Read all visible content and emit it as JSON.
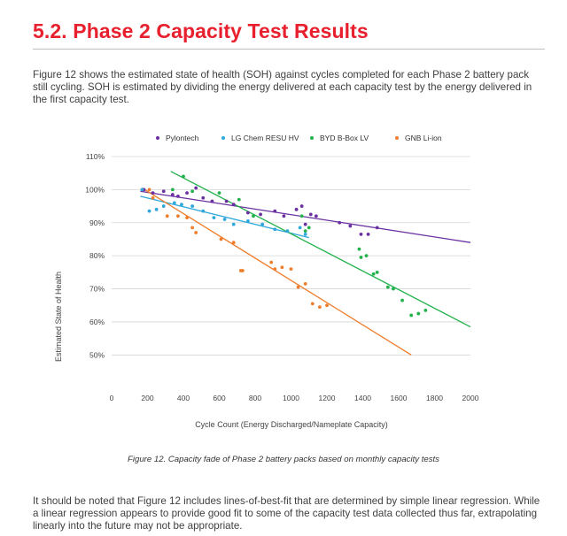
{
  "heading": "5.2. Phase 2 Capacity Test Results",
  "intro": "Figure 12 shows the estimated state of health (SOH) against cycles completed for each Phase 2 battery pack still cycling. SOH is estimated by dividing the energy delivered at each capacity test by the energy delivered in the first capacity test.",
  "caption": "Figure 12. Capacity fade of Phase 2 battery packs based on monthly capacity tests",
  "note": "It should be noted that Figure 12 includes lines-of-best-fit that are determined by simple linear regression. While a linear regression appears to provide good fit to some of the capacity test data collected thus far, extrapolating linearly into the future may not be appropriate.",
  "chart_data": {
    "type": "scatter",
    "xlabel": "Cycle Count (Energy Discharged/Nameplate Capacity)",
    "ylabel": "Estimated State of Health",
    "xlim": [
      0,
      2000
    ],
    "ylim": [
      45,
      110
    ],
    "xticks": [
      0,
      200,
      400,
      600,
      800,
      1000,
      1200,
      1400,
      1600,
      1800,
      2000
    ],
    "yticks": [
      50,
      60,
      70,
      80,
      90,
      100,
      110
    ],
    "ytick_labels": [
      "50%",
      "60%",
      "70%",
      "80%",
      "90%",
      "100%",
      "110%"
    ],
    "grid": "horizontal",
    "legend_position": "top",
    "series": [
      {
        "name": "Pylontech",
        "color": "#6a2fa0",
        "points": [
          [
            180,
            100
          ],
          [
            230,
            99
          ],
          [
            290,
            99.5
          ],
          [
            340,
            98.5
          ],
          [
            370,
            98
          ],
          [
            420,
            99
          ],
          [
            470,
            100.5
          ],
          [
            510,
            97.5
          ],
          [
            560,
            96.5
          ],
          [
            640,
            96.5
          ],
          [
            680,
            95.5
          ],
          [
            760,
            93
          ],
          [
            830,
            92.5
          ],
          [
            910,
            93.5
          ],
          [
            960,
            92
          ],
          [
            1030,
            94
          ],
          [
            1060,
            95
          ],
          [
            1080,
            89.5
          ],
          [
            1110,
            92.5
          ],
          [
            1140,
            92
          ],
          [
            1270,
            90
          ],
          [
            1330,
            89
          ],
          [
            1390,
            86.5
          ],
          [
            1430,
            86.5
          ],
          [
            1480,
            88.5
          ]
        ],
        "fit": [
          [
            160,
            99.5
          ],
          [
            2000,
            84
          ]
        ]
      },
      {
        "name": "LG Chem RESU HV",
        "color": "#2ea7dc",
        "points": [
          [
            170,
            100
          ],
          [
            210,
            93.5
          ],
          [
            250,
            94
          ],
          [
            290,
            95
          ],
          [
            350,
            96
          ],
          [
            390,
            95.5
          ],
          [
            450,
            95
          ],
          [
            510,
            93.5
          ],
          [
            570,
            91.5
          ],
          [
            630,
            91
          ],
          [
            680,
            89.5
          ],
          [
            760,
            90.5
          ],
          [
            840,
            89.5
          ],
          [
            910,
            88
          ],
          [
            980,
            87.5
          ],
          [
            1050,
            88.5
          ],
          [
            1080,
            86.5
          ]
        ],
        "fit": [
          [
            160,
            98
          ],
          [
            1100,
            85.5
          ]
        ]
      },
      {
        "name": "BYD B-Box LV",
        "color": "#22b24c",
        "points": [
          [
            340,
            100
          ],
          [
            400,
            104
          ],
          [
            450,
            99.5
          ],
          [
            600,
            99
          ],
          [
            710,
            97
          ],
          [
            790,
            92
          ],
          [
            1060,
            92
          ],
          [
            1080,
            87.5
          ],
          [
            1100,
            88.5
          ],
          [
            1380,
            82
          ],
          [
            1390,
            79.5
          ],
          [
            1420,
            80
          ],
          [
            1460,
            74.5
          ],
          [
            1480,
            75
          ],
          [
            1540,
            70.5
          ],
          [
            1570,
            70
          ],
          [
            1620,
            66.5
          ],
          [
            1670,
            62
          ],
          [
            1710,
            62.5
          ],
          [
            1750,
            63.5
          ]
        ],
        "fit": [
          [
            330,
            105.5
          ],
          [
            2000,
            58.5
          ]
        ]
      },
      {
        "name": "GNB Li-ion",
        "color": "#ef7d2b",
        "points": [
          [
            210,
            100
          ],
          [
            230,
            97.5
          ],
          [
            310,
            92
          ],
          [
            370,
            92
          ],
          [
            420,
            91.5
          ],
          [
            450,
            88.5
          ],
          [
            470,
            87
          ],
          [
            610,
            85
          ],
          [
            680,
            84
          ],
          [
            720,
            75.5
          ],
          [
            730,
            75.5
          ],
          [
            890,
            78
          ],
          [
            910,
            76
          ],
          [
            950,
            76.5
          ],
          [
            1000,
            76
          ],
          [
            1040,
            70.5
          ],
          [
            1080,
            71.5
          ],
          [
            1120,
            65.5
          ],
          [
            1160,
            64.5
          ],
          [
            1200,
            65
          ]
        ],
        "fit": [
          [
            170,
            100.5
          ],
          [
            1670,
            50
          ]
        ]
      }
    ]
  }
}
